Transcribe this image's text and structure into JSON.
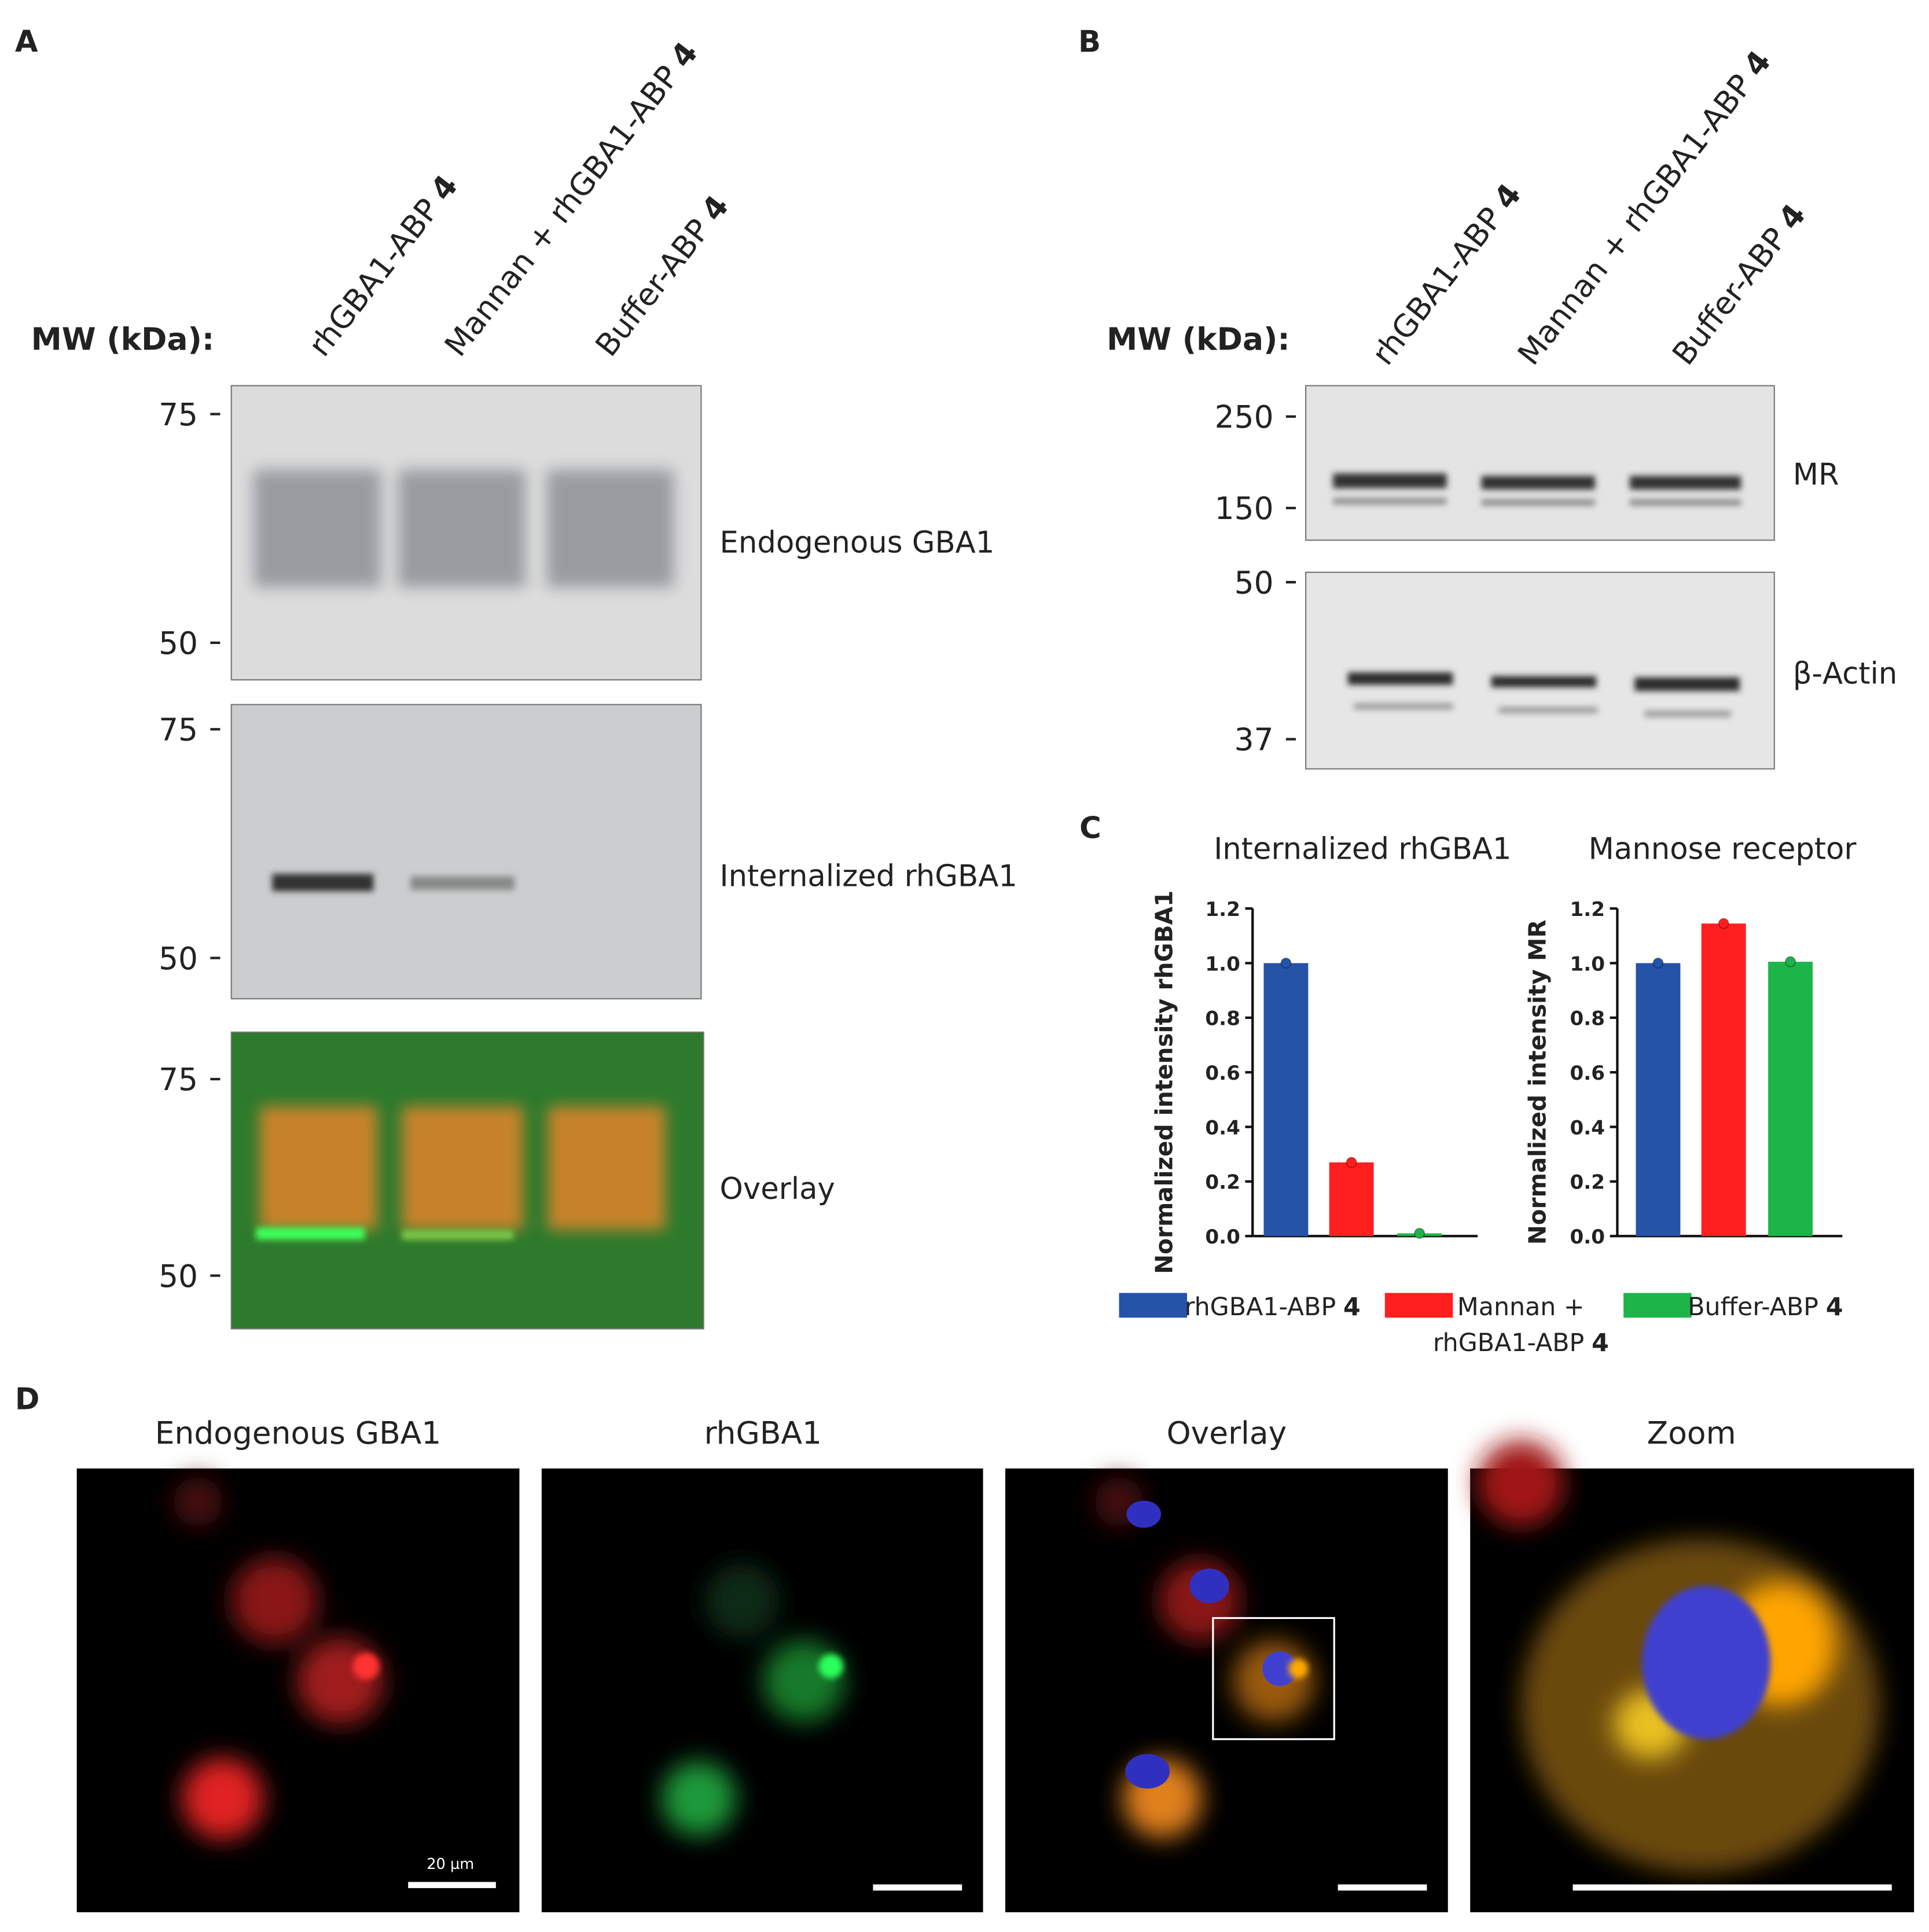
{
  "panel_labels": [
    "A",
    "B",
    "C",
    "D"
  ],
  "mw_label": "MW (kDa):",
  "lanes": [
    {
      "name": "rhGBA1-ABP",
      "suffix": "4"
    },
    {
      "name": "Mannan + rhGBA1-ABP",
      "suffix": "4"
    },
    {
      "name": "Buffer-ABP",
      "suffix": "4"
    }
  ],
  "panel_a": {
    "blots": [
      {
        "label": "Endogenous GBA1",
        "markers": [
          75,
          50
        ]
      },
      {
        "label": "Internalized rhGBA1",
        "markers": [
          75,
          50
        ]
      },
      {
        "label": "Overlay",
        "markers": [
          75,
          50
        ]
      }
    ]
  },
  "panel_b": {
    "blots": [
      {
        "label": "MR",
        "markers": [
          250,
          150
        ]
      },
      {
        "label": "β-Actin",
        "markers": [
          50,
          37
        ]
      }
    ]
  },
  "chart_data": [
    {
      "type": "bar",
      "title": "Internalized rhGBA1",
      "ylabel": "Normalized intensity rhGBA1",
      "ylim": [
        0,
        1.2
      ],
      "yticks": [
        {
          "value": 0,
          "label": "0.0"
        },
        {
          "value": 0.2,
          "label": "0.2"
        },
        {
          "value": 0.4,
          "label": "0.4"
        },
        {
          "value": 0.6,
          "label": "0.6"
        },
        {
          "value": 0.8,
          "label": "0.8"
        },
        {
          "value": 1,
          "label": "1.0"
        },
        {
          "value": 1.2,
          "label": "1.2"
        }
      ],
      "series": [
        {
          "color": "#2553a8",
          "values": [
            1.0
          ]
        },
        {
          "color": "#ff1f1f",
          "values": [
            0.27
          ]
        },
        {
          "color": "#1db54a",
          "values": [
            0.01
          ]
        }
      ]
    },
    {
      "type": "bar",
      "title": "Mannose receptor",
      "ylabel": "Normalized intensity MR",
      "ylim": [
        0,
        1.2
      ],
      "yticks": [
        {
          "value": 0,
          "label": "0.0"
        },
        {
          "value": 0.2,
          "label": "0.2"
        },
        {
          "value": 0.4,
          "label": "0.4"
        },
        {
          "value": 0.6,
          "label": "0.6"
        },
        {
          "value": 0.8,
          "label": "0.8"
        },
        {
          "value": 1,
          "label": "1.0"
        },
        {
          "value": 1.2,
          "label": "1.2"
        }
      ],
      "series": [
        {
          "color": "#2553a8",
          "values": [
            1.0
          ]
        },
        {
          "color": "#ff1f1f",
          "values": [
            1.145
          ]
        },
        {
          "color": "#1db54a",
          "values": [
            1.005
          ]
        }
      ]
    }
  ],
  "legend": [
    {
      "lines": [
        "rhGBA1-ABP"
      ],
      "suffix": "4"
    },
    {
      "lines": [
        "Mannan +",
        "rhGBA1-ABP"
      ],
      "suffix": "4"
    },
    {
      "lines": [
        "Buffer-ABP"
      ],
      "suffix": "4"
    }
  ],
  "panel_d": {
    "titles": [
      "Endogenous GBA1",
      "rhGBA1",
      "Overlay",
      "Zoom"
    ],
    "scale_label": "20 µm"
  }
}
